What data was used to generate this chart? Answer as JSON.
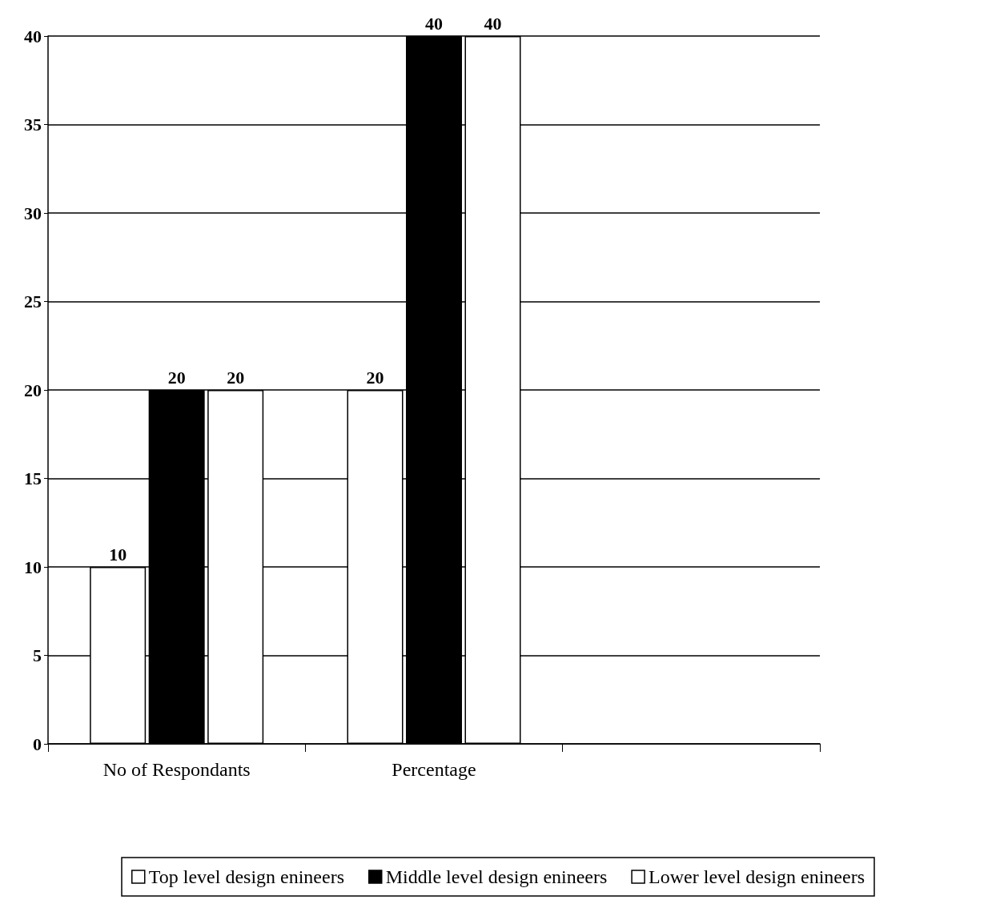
{
  "chart_data": {
    "type": "bar",
    "categories": [
      "No of Respondants",
      "Percentage",
      null
    ],
    "series": [
      {
        "name": "Top level design enineers",
        "color": "#ffffff",
        "values": [
          10,
          20,
          null
        ]
      },
      {
        "name": "Middle level design enineers",
        "color": "#000000",
        "values": [
          20,
          40,
          null
        ]
      },
      {
        "name": "Lower level design enineers",
        "color": "#ffffff",
        "values": [
          20,
          40,
          null
        ]
      }
    ],
    "ylim": [
      0,
      40
    ],
    "yticks": [
      0,
      5,
      10,
      15,
      20,
      25,
      30,
      35,
      40
    ],
    "grid": "y",
    "legend": "bottom",
    "data_labels": true
  }
}
